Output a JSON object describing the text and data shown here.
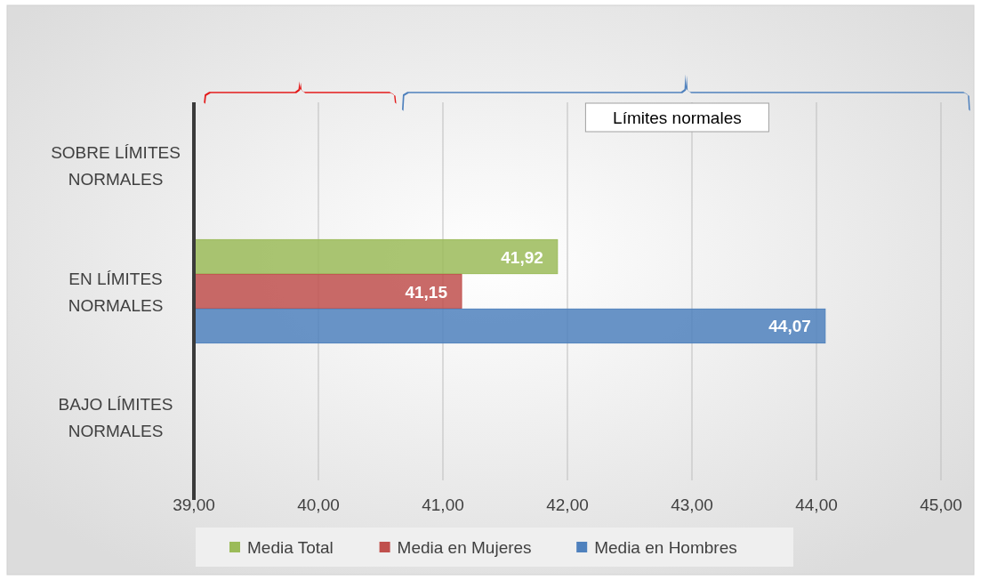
{
  "chart_data": {
    "type": "bar",
    "orientation": "horizontal",
    "categories": [
      "SOBRE LÍMITES NORMALES",
      "EN LÍMITES NORMALES",
      "BAJO LÍMITES NORMALES"
    ],
    "series": [
      {
        "name": "Media Total",
        "color": "#9bbb59",
        "values": [
          null,
          41.92,
          null
        ],
        "value_labels": [
          null,
          "41,92",
          null
        ]
      },
      {
        "name": "Media en Mujeres",
        "color": "#c0504d",
        "values": [
          null,
          41.15,
          null
        ],
        "value_labels": [
          null,
          "41,15",
          null
        ]
      },
      {
        "name": "Media en Hombres",
        "color": "#4f81bd",
        "values": [
          null,
          44.07,
          null
        ],
        "value_labels": [
          null,
          "44,07",
          null
        ]
      }
    ],
    "xlim": [
      39,
      45
    ],
    "xticks": [
      {
        "value": 39,
        "label": "39,00"
      },
      {
        "value": 40,
        "label": "40,00"
      },
      {
        "value": 41,
        "label": "41,00"
      },
      {
        "value": 42,
        "label": "42,00"
      },
      {
        "value": 43,
        "label": "43,00"
      },
      {
        "value": 44,
        "label": "44,00"
      },
      {
        "value": 45,
        "label": "45,00"
      }
    ],
    "grid": "x",
    "legend": "bottom",
    "annotations": [
      "Límites normales"
    ]
  }
}
